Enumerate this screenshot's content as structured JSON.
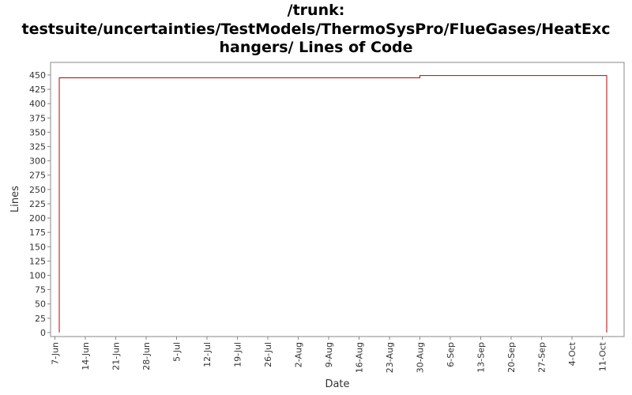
{
  "chart_data": {
    "type": "step-line",
    "title": [
      "/trunk:",
      "testsuite/uncertainties/TestModels/ThermoSysPro/FlueGases/HeatExc",
      "hangers/ Lines of Code"
    ],
    "x_label": "Date",
    "y_label": "Lines",
    "x": [
      "8-Jun",
      "8-Jun",
      "30-Aug",
      "12-Oct",
      "12-Oct"
    ],
    "series": [
      {
        "name": "Lines",
        "color": "#c00000",
        "values": [
          0,
          445,
          449,
          449,
          0
        ]
      }
    ],
    "xlim": [
      "6-Jun",
      "16-Oct"
    ],
    "xticks": [
      "7-Jun",
      "14-Jun",
      "21-Jun",
      "28-Jun",
      "5-Jul",
      "12-Jul",
      "19-Jul",
      "26-Jul",
      "2-Aug",
      "9-Aug",
      "16-Aug",
      "23-Aug",
      "30-Aug",
      "6-Sep",
      "13-Sep",
      "20-Sep",
      "27-Sep",
      "4-Oct",
      "11-Oct"
    ],
    "ylim": [
      -7,
      472
    ],
    "yticks": [
      0,
      25,
      50,
      75,
      100,
      125,
      150,
      175,
      200,
      225,
      250,
      275,
      300,
      325,
      350,
      375,
      400,
      425,
      450
    ]
  }
}
